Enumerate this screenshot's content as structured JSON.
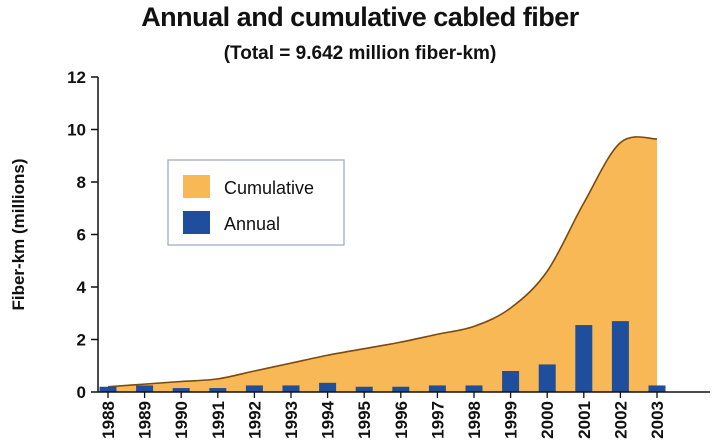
{
  "chart_data": {
    "type": "area",
    "title": "Annual and cumulative cabled fiber",
    "subtitle": "(Total = 9.642 million fiber-km)",
    "ylabel": "Fiber-km (millions)",
    "xlabel": "",
    "ylim": [
      0,
      12
    ],
    "yticks": [
      0,
      2,
      4,
      6,
      8,
      10,
      12
    ],
    "categories": [
      "1988",
      "1989",
      "1990",
      "1991",
      "1992",
      "1993",
      "1994",
      "1995",
      "1996",
      "1997",
      "1998",
      "1999",
      "2000",
      "2001",
      "2002",
      "2003"
    ],
    "series": [
      {
        "name": "Cumulative",
        "type": "area",
        "color": "#F8B856",
        "values": [
          0.2,
          0.3,
          0.4,
          0.5,
          0.8,
          1.1,
          1.4,
          1.65,
          1.9,
          2.2,
          2.5,
          3.2,
          4.6,
          7.2,
          9.5,
          9.642
        ]
      },
      {
        "name": "Annual",
        "type": "bar",
        "color": "#1F4E9C",
        "values": [
          0.2,
          0.25,
          0.15,
          0.15,
          0.25,
          0.25,
          0.35,
          0.2,
          0.2,
          0.25,
          0.25,
          0.8,
          1.05,
          2.55,
          2.7,
          0.25
        ]
      }
    ],
    "legend": "upper-left",
    "grid": false
  }
}
